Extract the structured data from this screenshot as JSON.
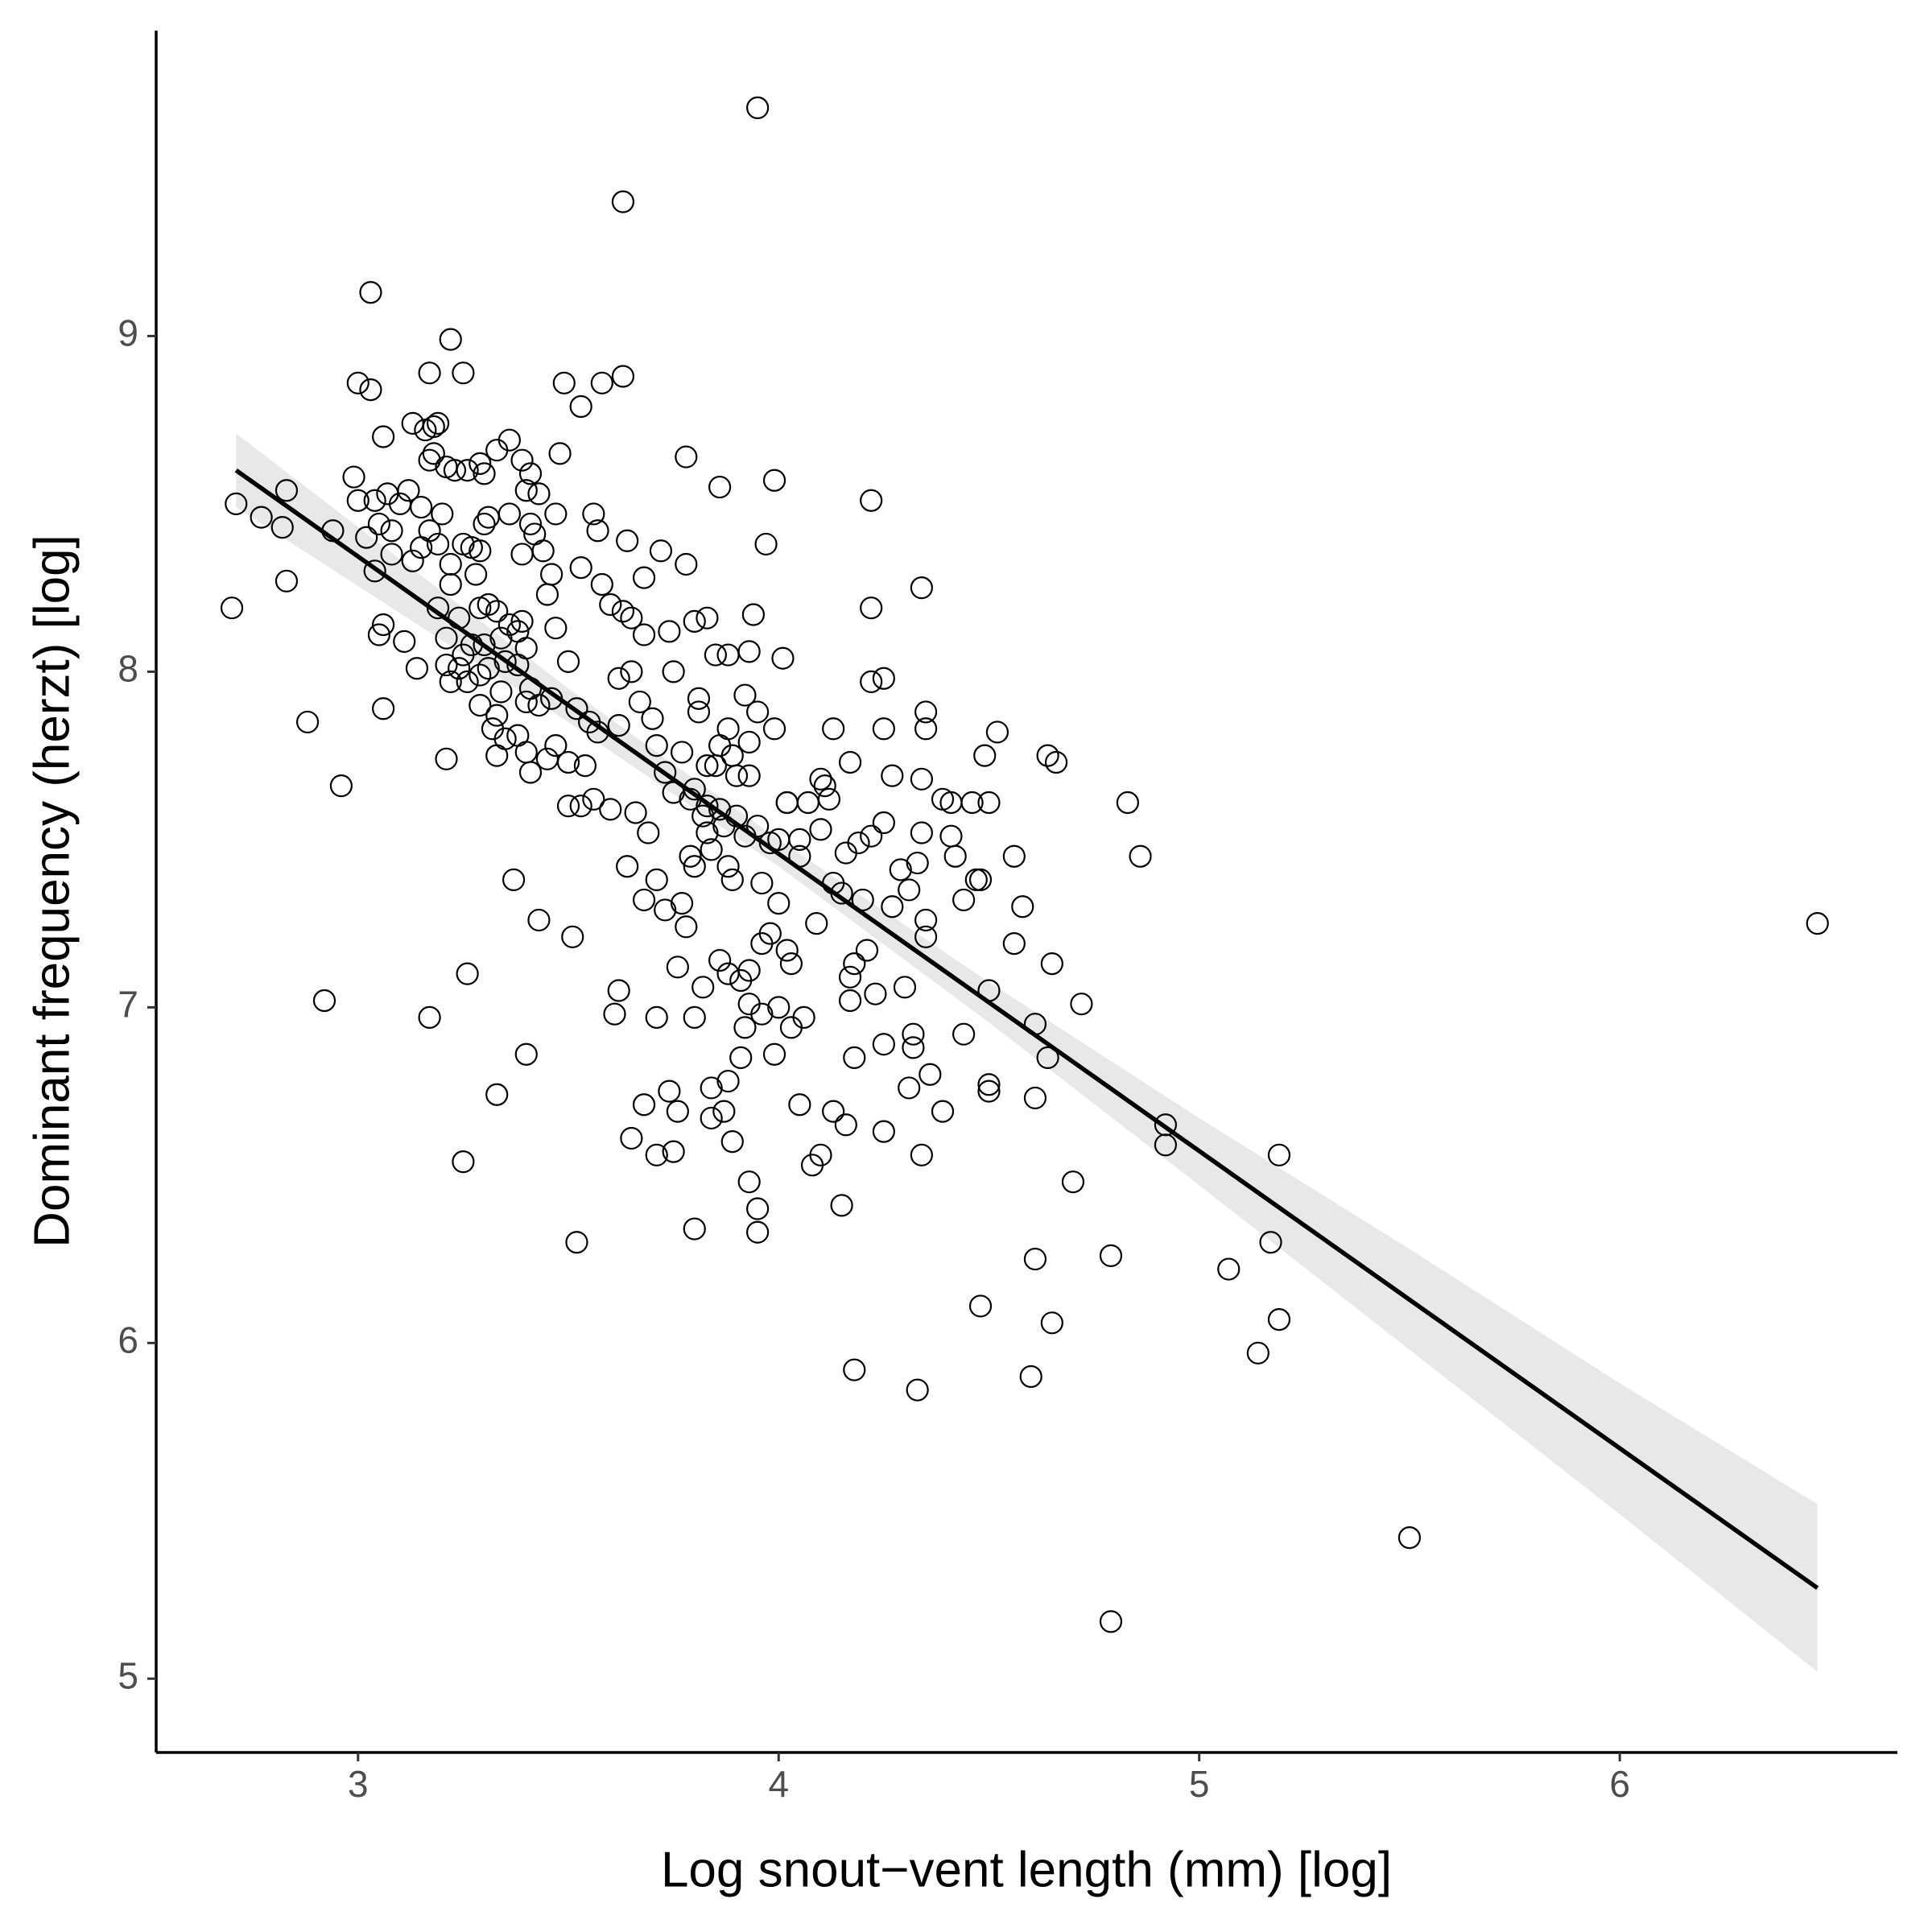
{
  "chart_data": {
    "type": "scatter",
    "xlabel": "Log snout−vent length (mm) [log]",
    "ylabel": "Dominant frequency (herzt) [log]",
    "xlim": [
      2.52,
      6.66
    ],
    "ylim": [
      4.78,
      9.91
    ],
    "xticks": [
      3,
      4,
      5,
      6
    ],
    "yticks": [
      5,
      6,
      7,
      8,
      9
    ],
    "grid": false,
    "series": [
      {
        "color": "#000000",
        "x": [
          3.95,
          3.63,
          3.03,
          6.47,
          5.5,
          4.79,
          4.79,
          4.6,
          4.33,
          4.18,
          4.48,
          5.07,
          5.14,
          5.19,
          5.17,
          5.19,
          4.92,
          4.92,
          4.65,
          4.61,
          4.7,
          4.83,
          4.86,
          4.72,
          4.64,
          4.66,
          2.71,
          2.7,
          2.77,
          2.82,
          2.83,
          2.83,
          2.88,
          2.92,
          2.96,
          2.94,
          3.17,
          3.26,
          3.25,
          3.33,
          3.4,
          3.37,
          3.43,
          3.51,
          3.52,
          3.8,
          3.95,
          3.95,
          3.93,
          4.15,
          3.65,
          3.71,
          3.75,
          3.71,
          3.62,
          3.61,
          3.68,
          3.74,
          3.76,
          3.84,
          3.87,
          3.89,
          3.84,
          3.88,
          3.91,
          3.92,
          3.99,
          4.06,
          4.05,
          4.08,
          4.1,
          4.13,
          4.16,
          4.18,
          4.25,
          4.25,
          4.31,
          4.32,
          4.32,
          4.34,
          4.36,
          4.39,
          4.44,
          4.5,
          4.5,
          4.61,
          4.64,
          4.61,
          4.5,
          4.56,
          4.65,
          4.58,
          4.56,
          4.47,
          4.44,
          4.35,
          4.35,
          4.31,
          4.3,
          4.23,
          4.2,
          4.17,
          4.18,
          4.17,
          4.09,
          4.1,
          4.12,
          4.16,
          4.19,
          4.22,
          4.25,
          4.27,
          4.25,
          4.22,
          4.25,
          4.22,
          4.22,
          4.34,
          4.35,
          4.35,
          4.34,
          4.39,
          4.41,
          4.46,
          4.49,
          4.52,
          4.5,
          4.41,
          4.42,
          4.33,
          4.34,
          4.17,
          4.13,
          4.1,
          4.11,
          4.05,
          4.0,
          4.02,
          3.99,
          3.97,
          4.01,
          3.93,
          3.94,
          3.86,
          3.78,
          3.78,
          3.8,
          3.83,
          3.85,
          3.88,
          3.92,
          3.99,
          3.95,
          3.88,
          3.86,
          3.83,
          3.81,
          3.81,
          3.77,
          3.75,
          3.74,
          3.72,
          3.68,
          3.64,
          3.63,
          3.58,
          3.53,
          3.49,
          3.56,
          3.57,
          3.58,
          3.53,
          3.63,
          3.65,
          3.6,
          3.68,
          3.62,
          3.65,
          3.67,
          3.7,
          3.71,
          3.73,
          3.75,
          3.79,
          3.82,
          3.83,
          3.79,
          3.8,
          3.77,
          3.73,
          3.71,
          3.68,
          3.64,
          3.69,
          3.66,
          3.6,
          3.56,
          3.53,
          3.5,
          3.54,
          3.5,
          3.47,
          3.45,
          3.41,
          3.4,
          3.38,
          3.35,
          3.33,
          3.32,
          3.33,
          3.34,
          3.4,
          3.41,
          3.43,
          3.46,
          3.52,
          3.55,
          3.57,
          3.62,
          3.5,
          3.47,
          3.45,
          3.46,
          3.44,
          3.41,
          3.4,
          3.43,
          3.41,
          3.39,
          3.36,
          3.33,
          3.29,
          3.3,
          3.26,
          3.23,
          3.21,
          3.2,
          3.18,
          3.17,
          3.16,
          3.18,
          3.19,
          3.13,
          3.17,
          3.22,
          3.25,
          3.06,
          3.0,
          3.03,
          2.99,
          3.0,
          3.04,
          3.07,
          3.1,
          3.12,
          3.15,
          3.17,
          3.15,
          3.08,
          3.05,
          3.02,
          3.04,
          3.08,
          3.13,
          3.19,
          3.22,
          3.25,
          3.27,
          3.28,
          3.22,
          3.19,
          3.21,
          3.24,
          3.29,
          3.31,
          3.33,
          3.36,
          3.38,
          3.34,
          3.3,
          3.27,
          3.25,
          3.24,
          3.22,
          3.21,
          3.26,
          3.29,
          3.31,
          3.35,
          3.38,
          3.4,
          3.39,
          3.05,
          3.06,
          3.11,
          3.14,
          3.06,
          3.21,
          3.29,
          3.3,
          3.31,
          3.36,
          3.29,
          3.39,
          3.42,
          3.47,
          3.48,
          3.86,
          3.88,
          3.91,
          3.93,
          3.96,
          3.98,
          4.02,
          4.03,
          4.0,
          3.96,
          3.93,
          4.03,
          3.82,
          3.8,
          3.76,
          3.78,
          3.84,
          3.87,
          3.9,
          3.92,
          3.95,
          3.98,
          4.0,
          3.96,
          3.89,
          3.88,
          3.86,
          3.83,
          3.8,
          3.9,
          3.93,
          3.93,
          3.89,
          3.85,
          4.02,
          4.05,
          4.07,
          4.13,
          4.15,
          4.27,
          4.29,
          4.21,
          4.48
        ],
        "values": [
          9.68,
          9.4,
          9.13,
          7.25,
          5.42,
          5.17,
          6.26,
          5.9,
          5.86,
          5.92,
          6.11,
          6.22,
          5.97,
          6.07,
          6.3,
          6.56,
          6.59,
          6.65,
          6.06,
          6.25,
          6.48,
          7.61,
          7.45,
          7.01,
          7.75,
          7.73,
          8.5,
          8.19,
          8.46,
          8.43,
          8.54,
          8.27,
          7.85,
          7.02,
          7.66,
          8.42,
          6.97,
          7.1,
          6.54,
          6.74,
          6.86,
          7.38,
          7.26,
          7.21,
          6.3,
          6.34,
          6.33,
          6.4,
          6.48,
          6.41,
          6.61,
          6.56,
          6.57,
          6.97,
          7.05,
          6.98,
          6.71,
          6.75,
          6.69,
          6.67,
          6.69,
          6.6,
          6.76,
          6.78,
          6.85,
          6.94,
          6.86,
          6.97,
          6.71,
          6.53,
          6.56,
          6.69,
          6.65,
          6.85,
          6.63,
          6.89,
          6.76,
          6.88,
          6.92,
          6.56,
          6.8,
          6.69,
          6.92,
          6.75,
          6.77,
          6.73,
          6.85,
          6.95,
          7.05,
          7.19,
          7.13,
          7.3,
          7.45,
          7.38,
          7.32,
          7.26,
          7.21,
          7.35,
          7.06,
          7.04,
          7.32,
          7.02,
          7.13,
          7.09,
          7.25,
          7.53,
          7.62,
          7.46,
          7.49,
          7.51,
          7.55,
          7.69,
          7.83,
          7.97,
          7.98,
          8.19,
          8.51,
          8.25,
          7.88,
          7.83,
          7.68,
          7.62,
          7.61,
          7.61,
          7.75,
          7.82,
          7.61,
          7.51,
          7.45,
          7.43,
          7.52,
          7.73,
          7.83,
          7.68,
          7.66,
          7.45,
          7.5,
          7.61,
          8.57,
          8.38,
          8.04,
          8.06,
          8.17,
          8.55,
          8.64,
          8.32,
          8.15,
          8.16,
          8.05,
          8.05,
          7.93,
          7.83,
          7.88,
          7.83,
          7.78,
          7.72,
          7.88,
          7.92,
          7.76,
          8.0,
          8.12,
          8.36,
          8.28,
          8.39,
          8.88,
          8.86,
          8.79,
          8.86,
          8.47,
          8.42,
          8.26,
          8.31,
          8.18,
          8.16,
          8.2,
          8.11,
          7.98,
          8.0,
          7.91,
          7.86,
          7.78,
          7.7,
          7.64,
          7.62,
          7.57,
          7.52,
          7.45,
          7.42,
          7.31,
          7.29,
          7.38,
          7.32,
          7.42,
          7.52,
          7.58,
          7.59,
          7.62,
          7.6,
          7.6,
          7.72,
          7.73,
          7.78,
          7.74,
          7.7,
          7.76,
          7.81,
          7.8,
          7.75,
          7.83,
          7.87,
          7.94,
          7.91,
          7.95,
          7.9,
          7.92,
          7.89,
          7.85,
          7.82,
          7.84,
          8.03,
          8.13,
          8.23,
          8.29,
          8.36,
          8.44,
          8.54,
          8.53,
          8.59,
          8.63,
          8.69,
          8.66,
          8.62,
          8.59,
          8.6,
          8.6,
          8.61,
          8.47,
          8.65,
          8.63,
          8.72,
          8.73,
          8.74,
          8.74,
          8.89,
          8.99,
          8.89,
          8.7,
          8.86,
          8.84,
          8.58,
          8.51,
          8.51,
          8.53,
          8.5,
          8.54,
          8.49,
          8.42,
          8.37,
          8.42,
          8.44,
          8.4,
          8.3,
          8.35,
          8.33,
          8.38,
          8.32,
          8.38,
          8.37,
          8.29,
          8.26,
          8.19,
          8.1,
          8.16,
          8.19,
          8.2,
          8.18,
          8.14,
          8.12,
          8.1,
          8.08,
          8.08,
          8.05,
          8.01,
          7.97,
          8.02,
          7.97,
          7.99,
          8.01,
          8.03,
          8.02,
          8.07,
          8.15,
          8.11,
          8.14,
          8.09,
          8.01,
          7.89,
          7.74,
          7.9,
          8.44,
          8.46,
          8.47,
          8.36,
          8.35,
          8.41,
          8.47,
          8.65,
          7.14,
          7.1,
          7.08,
          7.11,
          7.19,
          7.22,
          7.17,
          7.13,
          7.0,
          6.98,
          7.01,
          6.94,
          7.06,
          6.97,
          7.12,
          7.24,
          7.47,
          7.54,
          7.57,
          7.51,
          7.54,
          7.49,
          7.31,
          7.37,
          7.38,
          7.42,
          7.59,
          7.6,
          7.65,
          7.69,
          7.69,
          7.79,
          7.75,
          7.72,
          7.61,
          7.5,
          7.61,
          7.37,
          7.34,
          7.3,
          7.41,
          7.17,
          7.38
        ]
      }
    ],
    "fit": {
      "color": "#000000",
      "x": [
        2.71,
        6.47
      ],
      "values": [
        8.6,
        5.27
      ]
    },
    "band": {
      "color": "#e6e6e6",
      "x": [
        2.71,
        3.5,
        4.0,
        4.5,
        5.0,
        5.5,
        6.0,
        6.47
      ],
      "lower": [
        8.49,
        7.85,
        7.42,
        6.955,
        6.47,
        5.98,
        5.49,
        5.02
      ],
      "upper": [
        8.71,
        7.95,
        7.5,
        7.075,
        6.67,
        6.28,
        5.88,
        5.52
      ]
    }
  }
}
